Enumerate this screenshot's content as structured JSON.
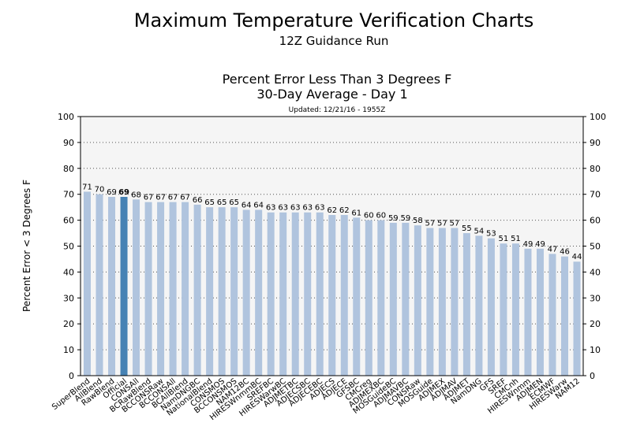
{
  "header": {
    "title": "Maximum Temperature Verification Charts",
    "subtitle": "12Z Guidance Run"
  },
  "chart_data": {
    "type": "bar",
    "title": "Percent Error Less Than 3 Degrees F",
    "subtitle": "30-Day Average - Day 1",
    "updated": "Updated: 12/21/16 - 1955Z",
    "ylabel": "Percent Error < 3 Degrees F",
    "xlabel": "",
    "ylim": [
      0,
      100
    ],
    "yticks": [
      0,
      10,
      20,
      30,
      40,
      50,
      60,
      70,
      80,
      90,
      100
    ],
    "grid": true,
    "highlight": "Official",
    "colors": {
      "bar": "#b0c4de",
      "highlight": "#4682b4",
      "plot_bg": "#f5f5f5"
    },
    "categories": [
      "SuperBlend",
      "AllBlend",
      "RawBlend",
      "Official",
      "CONSAll",
      "BCRawBlend",
      "BCCONSRaw",
      "BCCONSAll",
      "BCAllBlend",
      "NamDNGBC",
      "NationalBlend",
      "CONSMOS",
      "BCCONSMOS",
      "NAM12BC",
      "HIRESWnmmBC",
      "SREFBC",
      "HIRESWarwBC",
      "ADJMETBC",
      "ADJECSBC",
      "ADJECEBC",
      "ADJECS",
      "ADJECE",
      "GFSBC",
      "CMCreg",
      "ADJMEXBC",
      "MOSGuideBC",
      "ADJMAVBC",
      "CONSRaw",
      "MOSGuide",
      "ADJMEX",
      "ADJMAV",
      "ADJMET",
      "NamDNG",
      "GFS",
      "SREF",
      "CMCnh",
      "HIRESWnmm",
      "ADJMEN",
      "ECMWF",
      "HIRESWarw",
      "NAM12"
    ],
    "values": [
      71,
      70,
      69,
      69,
      68,
      67,
      67,
      67,
      67,
      66,
      65,
      65,
      65,
      64,
      64,
      63,
      63,
      63,
      63,
      63,
      62,
      62,
      61,
      60,
      60,
      59,
      59,
      58,
      57,
      57,
      57,
      55,
      54,
      53,
      51,
      51,
      49,
      49,
      47,
      46,
      44
    ]
  }
}
